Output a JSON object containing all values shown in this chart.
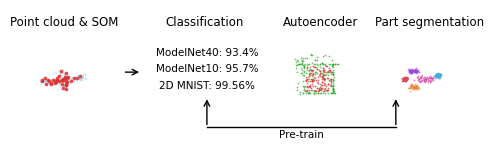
{
  "title_pc": "Point cloud & SOM",
  "title_cls": "Classification",
  "title_ae": "Autoencoder",
  "title_seg": "Part segmentation",
  "cls_lines": [
    "ModelNet40: 93.4%",
    "ModelNet10: 95.7%",
    "2D MNIST: 99.56%"
  ],
  "pretrain_label": "Pre-train",
  "bg_color": "#ffffff",
  "title_fontsize": 8.5,
  "text_fontsize": 7.5,
  "arrow_color": "#000000"
}
